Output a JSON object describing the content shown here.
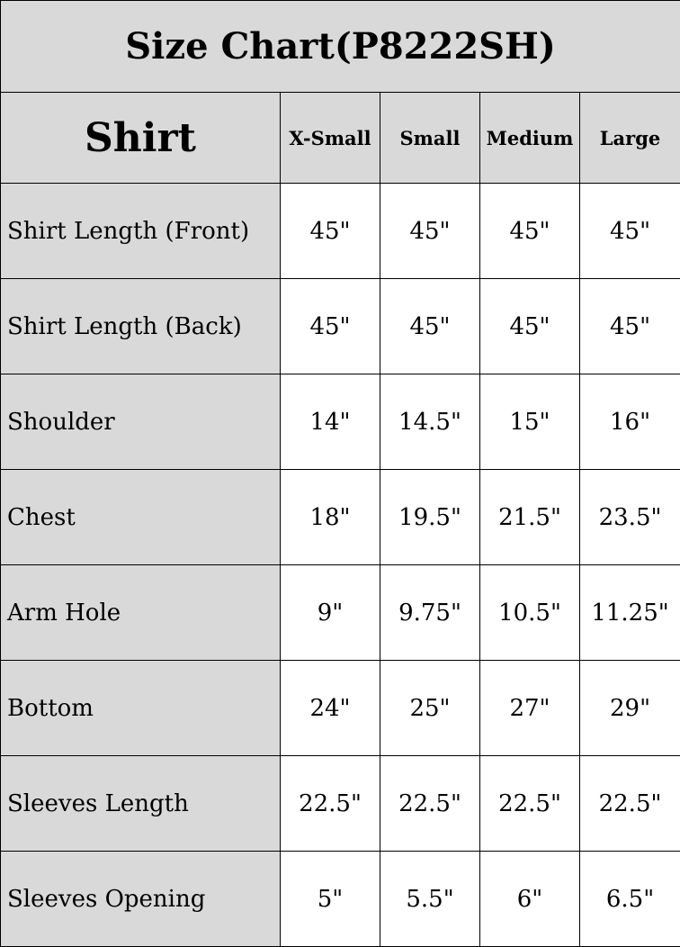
{
  "title": "Size Chart(P8222SH)",
  "header": {
    "category": "Shirt",
    "sizes": [
      "X-Small",
      "Small",
      "Medium",
      "Large"
    ]
  },
  "rows": [
    {
      "label": "Shirt Length (Front)",
      "values": [
        "45\"",
        "45\"",
        "45\"",
        "45\""
      ]
    },
    {
      "label": "Shirt Length (Back)",
      "values": [
        "45\"",
        "45\"",
        "45\"",
        "45\""
      ]
    },
    {
      "label": "Shoulder",
      "values": [
        "14\"",
        "14.5\"",
        "15\"",
        "16\""
      ]
    },
    {
      "label": "Chest",
      "values": [
        "18\"",
        "19.5\"",
        "21.5\"",
        "23.5\""
      ]
    },
    {
      "label": "Arm Hole",
      "values": [
        "9\"",
        "9.75\"",
        "10.5\"",
        "11.25\""
      ]
    },
    {
      "label": "Bottom",
      "values": [
        "24\"",
        "25\"",
        "27\"",
        "29\""
      ]
    },
    {
      "label": "Sleeves Length",
      "values": [
        "22.5\"",
        "22.5\"",
        "22.5\"",
        "22.5\""
      ]
    },
    {
      "label": "Sleeves Opening",
      "values": [
        "5\"",
        "5.5\"",
        "6\"",
        "6.5\""
      ]
    }
  ]
}
